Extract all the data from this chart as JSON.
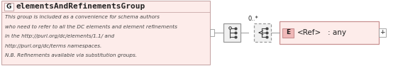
{
  "title": "elementsAndRefinementsGroup",
  "title_prefix": "G",
  "description_lines": [
    "This group is included as a convenience for schema authors",
    "who need to refer to all the DC elements and element refinements",
    "in the http://purl.org/dc/elements/1.1/ and",
    "http://purl.org/dc/terms namespaces.",
    "N.B. Refinements available via substitution groups."
  ],
  "multiplicity": "0..*",
  "element_prefix": "E",
  "element_name": "<Ref>",
  "element_type": ": any",
  "main_box_bg": "#fdecea",
  "main_box_border": "#c8a8a8",
  "elem_box_bg": "#fdecea",
  "elem_box_border": "#c89090",
  "elem_prefix_bg": "#f0b8b8",
  "connector_color": "#999999",
  "seq_box_bg": "#f0f0f0",
  "seq_box_border": "#999999",
  "text_color": "#222222",
  "desc_color": "#444444",
  "fig_width": 5.61,
  "fig_height": 0.93
}
